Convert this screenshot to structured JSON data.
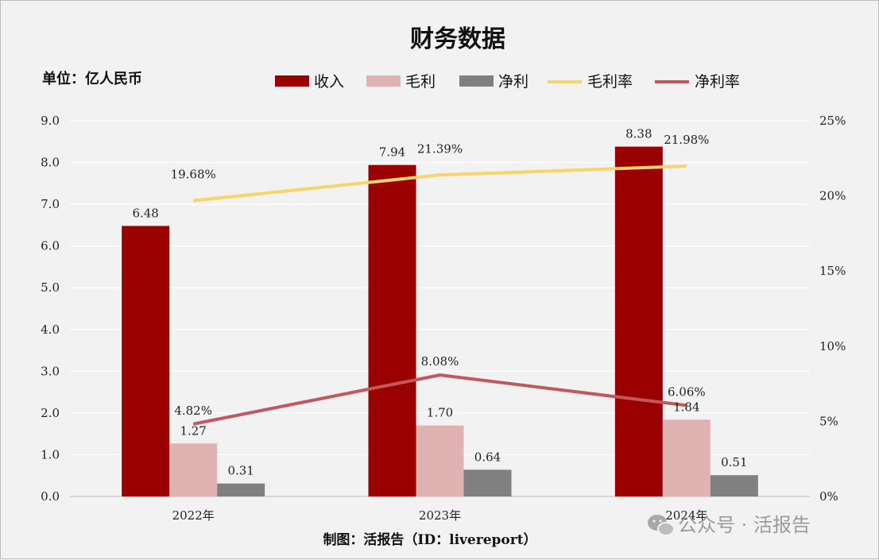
{
  "chart_data": {
    "type": "bar",
    "title": "财务数据",
    "unit_label": "单位：亿人民币",
    "categories": [
      "2022年",
      "2023年",
      "2024年"
    ],
    "series": [
      {
        "name": "收入",
        "kind": "bar",
        "axis": "left",
        "color": "#9b0000",
        "values": [
          6.48,
          7.94,
          8.38
        ],
        "labels": [
          "6.48",
          "7.94",
          "8.38"
        ]
      },
      {
        "name": "毛利",
        "kind": "bar",
        "axis": "left",
        "color": "#e0b3b3",
        "values": [
          1.27,
          1.7,
          1.84
        ],
        "labels": [
          "1.27",
          "1.70",
          "1.84"
        ]
      },
      {
        "name": "净利",
        "kind": "bar",
        "axis": "left",
        "color": "#808080",
        "values": [
          0.31,
          0.64,
          0.51
        ],
        "labels": [
          "0.31",
          "0.64",
          "0.51"
        ]
      },
      {
        "name": "毛利率",
        "kind": "line",
        "axis": "right",
        "color": "#f7d56a",
        "values": [
          19.68,
          21.39,
          21.98
        ],
        "labels": [
          "19.68%",
          "21.39%",
          "21.98%"
        ]
      },
      {
        "name": "净利率",
        "kind": "line",
        "axis": "right",
        "color": "#c0585d",
        "values": [
          4.82,
          8.08,
          6.06
        ],
        "labels": [
          "4.82%",
          "8.08%",
          "6.06%"
        ]
      }
    ],
    "y_left": {
      "min": 0,
      "max": 9,
      "step": 1,
      "ticks": [
        "0.0",
        "1.0",
        "2.0",
        "3.0",
        "4.0",
        "5.0",
        "6.0",
        "7.0",
        "8.0",
        "9.0"
      ]
    },
    "y_right": {
      "min": 0,
      "max": 25,
      "step": 5,
      "ticks": [
        "0%",
        "5%",
        "10%",
        "15%",
        "20%",
        "25%"
      ]
    },
    "grid": true,
    "legend_position": "top-center",
    "credit": "制图：活报告（ID：livereport）",
    "watermark": "公众号 · 活报告"
  }
}
